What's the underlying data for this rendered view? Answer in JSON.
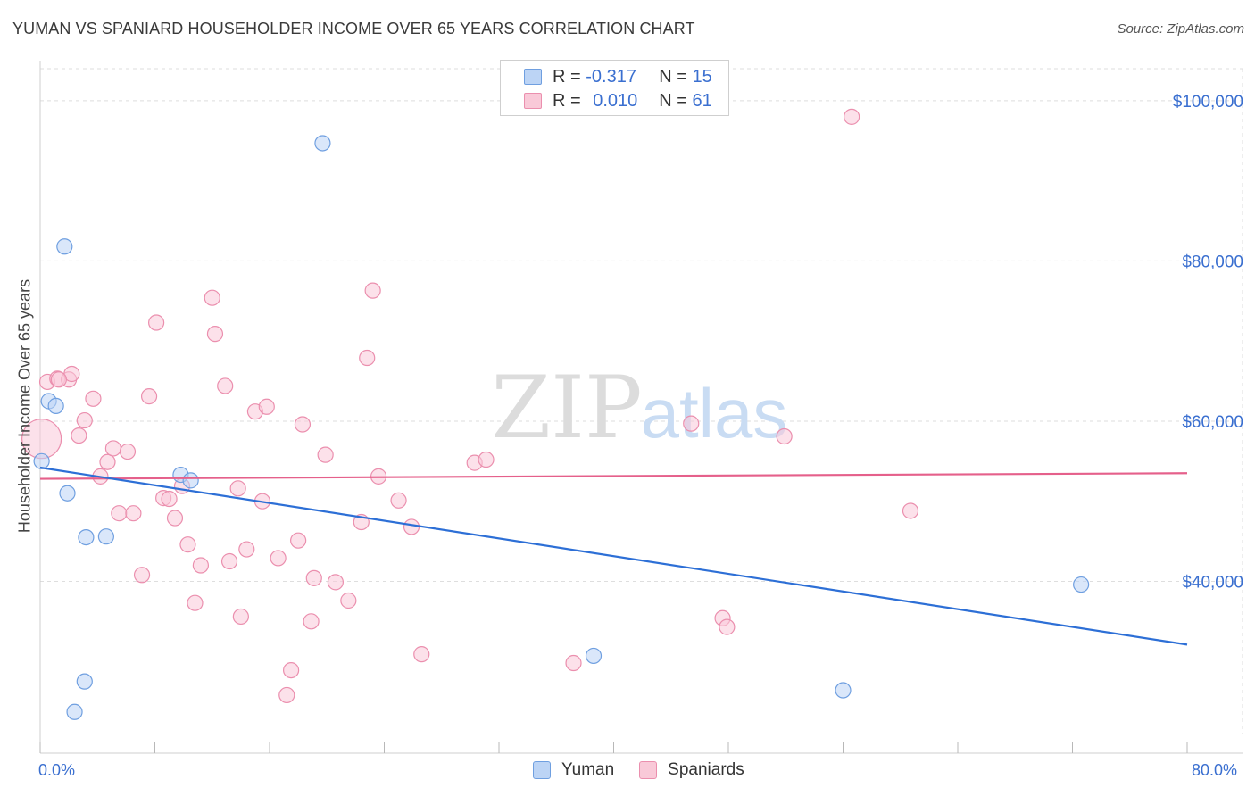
{
  "title": "YUMAN VS SPANIARD HOUSEHOLDER INCOME OVER 65 YEARS CORRELATION CHART",
  "source": "Source: ZipAtlas.com",
  "watermark": {
    "zip": "ZIP",
    "atlas": "atlas"
  },
  "legend": {
    "rows": [
      {
        "r_label": "R =",
        "r_value": "-0.317",
        "n_label": "N =",
        "n_value": "15"
      },
      {
        "r_label": "R =",
        "r_value": "0.010",
        "n_label": "N =",
        "n_value": "61"
      }
    ]
  },
  "bottom_legend": [
    "Yuman",
    "Spaniards"
  ],
  "colors": {
    "yuman_fill": "#bcd4f5",
    "yuman_stroke": "#6f9fe0",
    "yuman_line": "#2d6fd6",
    "spaniard_fill": "#f9c9d8",
    "spaniard_stroke": "#eb8fae",
    "spaniard_line": "#e5608b",
    "axis_text": "#3a6fd0",
    "grid": "#dedede"
  },
  "chart_data": {
    "type": "scatter",
    "title": "YUMAN VS SPANIARD HOUSEHOLDER INCOME OVER 65 YEARS CORRELATION CHART",
    "xlabel": "",
    "ylabel": "Householder Income Over 65 years",
    "xlim": [
      0,
      80
    ],
    "ylim": [
      21000,
      104000
    ],
    "x_tick_labels": [
      "0.0%",
      "80.0%"
    ],
    "y_ticks": [
      40000,
      60000,
      80000,
      100000
    ],
    "y_tick_labels": [
      "$40,000",
      "$60,000",
      "$80,000",
      "$100,000"
    ],
    "series": [
      {
        "name": "Yuman",
        "r": -0.317,
        "n": 15,
        "trend": {
          "x": [
            0,
            80
          ],
          "y": [
            54200,
            32100
          ]
        },
        "points": [
          {
            "x": 0.1,
            "y": 55000
          },
          {
            "x": 0.6,
            "y": 62500
          },
          {
            "x": 1.1,
            "y": 61900
          },
          {
            "x": 1.7,
            "y": 81800
          },
          {
            "x": 1.9,
            "y": 51000
          },
          {
            "x": 3.2,
            "y": 45500
          },
          {
            "x": 4.6,
            "y": 45600
          },
          {
            "x": 9.8,
            "y": 53300
          },
          {
            "x": 10.5,
            "y": 52600
          },
          {
            "x": 19.7,
            "y": 94700
          },
          {
            "x": 3.1,
            "y": 27500
          },
          {
            "x": 2.4,
            "y": 23700
          },
          {
            "x": 38.6,
            "y": 30700
          },
          {
            "x": 56.0,
            "y": 26400
          },
          {
            "x": 72.6,
            "y": 39600
          }
        ]
      },
      {
        "name": "Spaniards",
        "r": 0.01,
        "n": 61,
        "trend": {
          "x": [
            0,
            80
          ],
          "y": [
            52800,
            53500
          ]
        },
        "points": [
          {
            "x": 0.1,
            "y": 57800,
            "big": true
          },
          {
            "x": 0.5,
            "y": 64900
          },
          {
            "x": 1.2,
            "y": 65300
          },
          {
            "x": 2.0,
            "y": 65200
          },
          {
            "x": 2.2,
            "y": 65900
          },
          {
            "x": 2.7,
            "y": 58200
          },
          {
            "x": 3.1,
            "y": 60100
          },
          {
            "x": 3.7,
            "y": 62800
          },
          {
            "x": 4.2,
            "y": 53100
          },
          {
            "x": 4.7,
            "y": 54900
          },
          {
            "x": 5.1,
            "y": 56600
          },
          {
            "x": 5.5,
            "y": 48500
          },
          {
            "x": 6.1,
            "y": 56200
          },
          {
            "x": 6.5,
            "y": 48500
          },
          {
            "x": 7.1,
            "y": 40800
          },
          {
            "x": 7.6,
            "y": 63100
          },
          {
            "x": 8.1,
            "y": 72300
          },
          {
            "x": 8.6,
            "y": 50400
          },
          {
            "x": 9.0,
            "y": 50300
          },
          {
            "x": 9.4,
            "y": 47900
          },
          {
            "x": 9.9,
            "y": 51900
          },
          {
            "x": 10.3,
            "y": 44600
          },
          {
            "x": 10.8,
            "y": 37300
          },
          {
            "x": 11.2,
            "y": 42000
          },
          {
            "x": 12.0,
            "y": 75400
          },
          {
            "x": 12.2,
            "y": 70900
          },
          {
            "x": 12.9,
            "y": 64400
          },
          {
            "x": 13.2,
            "y": 42500
          },
          {
            "x": 13.8,
            "y": 51600
          },
          {
            "x": 14.0,
            "y": 35600
          },
          {
            "x": 14.4,
            "y": 44000
          },
          {
            "x": 15.0,
            "y": 61200
          },
          {
            "x": 15.5,
            "y": 50000
          },
          {
            "x": 15.8,
            "y": 61800
          },
          {
            "x": 16.6,
            "y": 42900
          },
          {
            "x": 17.2,
            "y": 25800
          },
          {
            "x": 17.5,
            "y": 28900
          },
          {
            "x": 18.0,
            "y": 45100
          },
          {
            "x": 18.3,
            "y": 59600
          },
          {
            "x": 18.9,
            "y": 35000
          },
          {
            "x": 19.1,
            "y": 40400
          },
          {
            "x": 19.9,
            "y": 55800
          },
          {
            "x": 20.6,
            "y": 39900
          },
          {
            "x": 21.5,
            "y": 37600
          },
          {
            "x": 22.4,
            "y": 47400
          },
          {
            "x": 22.8,
            "y": 67900
          },
          {
            "x": 23.2,
            "y": 76300
          },
          {
            "x": 23.6,
            "y": 53100
          },
          {
            "x": 25.0,
            "y": 50100
          },
          {
            "x": 25.9,
            "y": 46800
          },
          {
            "x": 26.6,
            "y": 30900
          },
          {
            "x": 30.3,
            "y": 54800
          },
          {
            "x": 31.1,
            "y": 55200
          },
          {
            "x": 37.2,
            "y": 29800
          },
          {
            "x": 45.4,
            "y": 59700
          },
          {
            "x": 47.6,
            "y": 35400
          },
          {
            "x": 47.9,
            "y": 34300
          },
          {
            "x": 51.9,
            "y": 58100
          },
          {
            "x": 56.6,
            "y": 98000
          },
          {
            "x": 60.7,
            "y": 48800
          },
          {
            "x": 1.3,
            "y": 65200
          }
        ]
      }
    ]
  }
}
